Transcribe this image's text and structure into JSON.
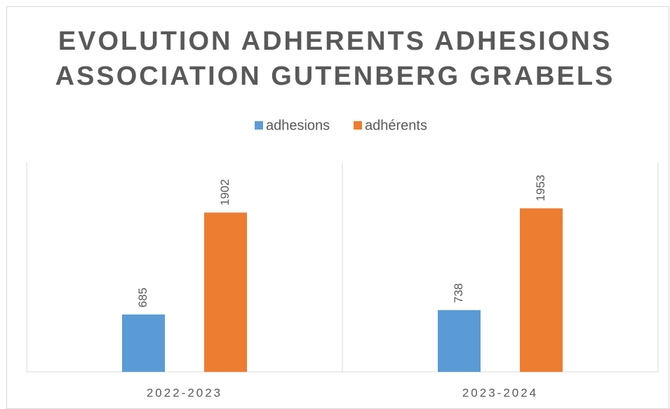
{
  "chart_data": {
    "type": "bar",
    "title": "EVOLUTION ADHERENTS ADHESIONS ASSOCIATION GUTENBERG GRABELS",
    "categories": [
      "2022-2023",
      "2023-2024"
    ],
    "series": [
      {
        "name": "adhesions",
        "color": "#5b9bd5",
        "values": [
          685,
          738
        ]
      },
      {
        "name": "adhérents",
        "color": "#ed7d31",
        "values": [
          1902,
          1953
        ]
      }
    ],
    "ylim": [
      0,
      2500
    ],
    "legend": "top"
  }
}
